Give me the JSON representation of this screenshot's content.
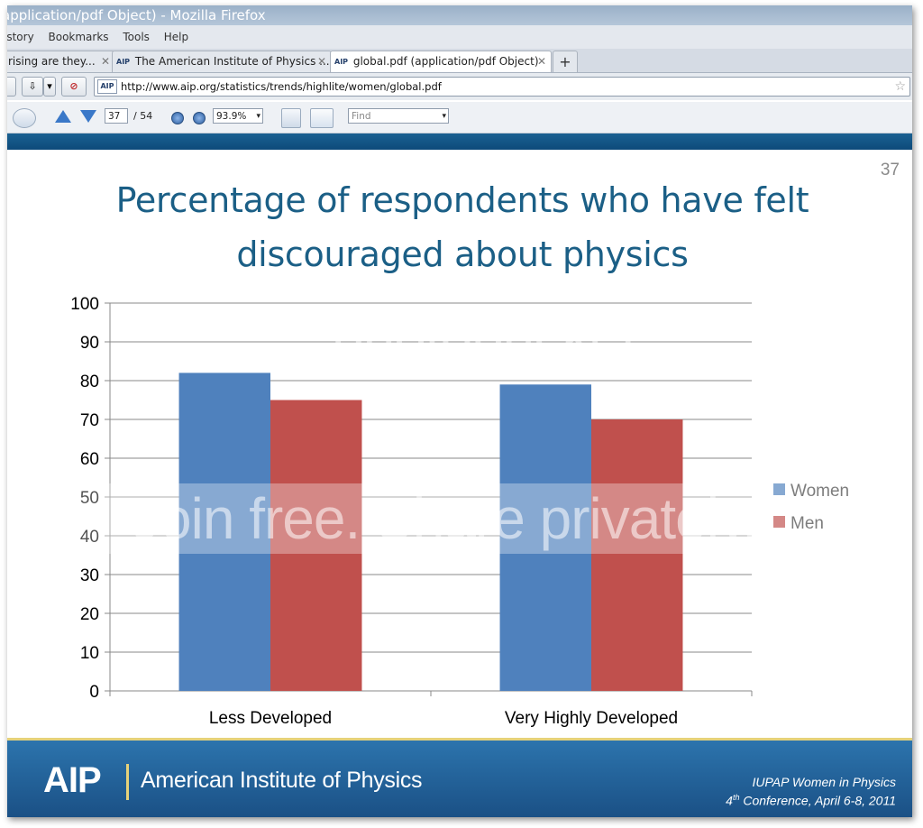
{
  "window": {
    "title": "application/pdf Object) - Mozilla Firefox",
    "menu": [
      "istory",
      "Bookmarks",
      "Tools",
      "Help"
    ]
  },
  "tabs": [
    {
      "label": "rising are they...",
      "active": false
    },
    {
      "label": "The American Institute of Physics ...",
      "favicon": "AIP",
      "active": false
    },
    {
      "label": "global.pdf (application/pdf Object)",
      "favicon": "AIP",
      "active": true
    }
  ],
  "nav": {
    "url": "http://www.aip.org/statistics/trends/highlite/women/global.pdf",
    "url_favicon": "AIP"
  },
  "pdf_toolbar": {
    "page_current": "37",
    "page_total": "/ 54",
    "zoom": "93.9%",
    "find_placeholder": "Find"
  },
  "slide": {
    "page_number": "37",
    "title_line1": "Percentage of respondents who have felt",
    "title_line2": "discouraged about physics",
    "footer_logo": "AIP",
    "footer_name": "American Institute of Physics",
    "conference_line1": "IUPAP Women in Physics",
    "conference_line2_sup": "th",
    "conference_line2_num": "4",
    "conference_line2_rest": " Conference, April 6-8, 2011"
  },
  "watermark": {
    "line1": "photobucket",
    "line2": "Join free. Share privately."
  },
  "colors": {
    "women": "#4f81bd",
    "men": "#c0504d",
    "title": "#1b5f86"
  },
  "chart_data": {
    "type": "bar",
    "categories": [
      "Less Developed",
      "Very Highly Developed"
    ],
    "series": [
      {
        "name": "Women",
        "values": [
          82,
          79
        ]
      },
      {
        "name": "Men",
        "values": [
          75,
          70
        ]
      }
    ],
    "yticks": [
      0,
      10,
      20,
      30,
      40,
      50,
      60,
      70,
      80,
      90,
      100
    ],
    "ylim": [
      0,
      100
    ],
    "grid": true,
    "legend": "right"
  }
}
